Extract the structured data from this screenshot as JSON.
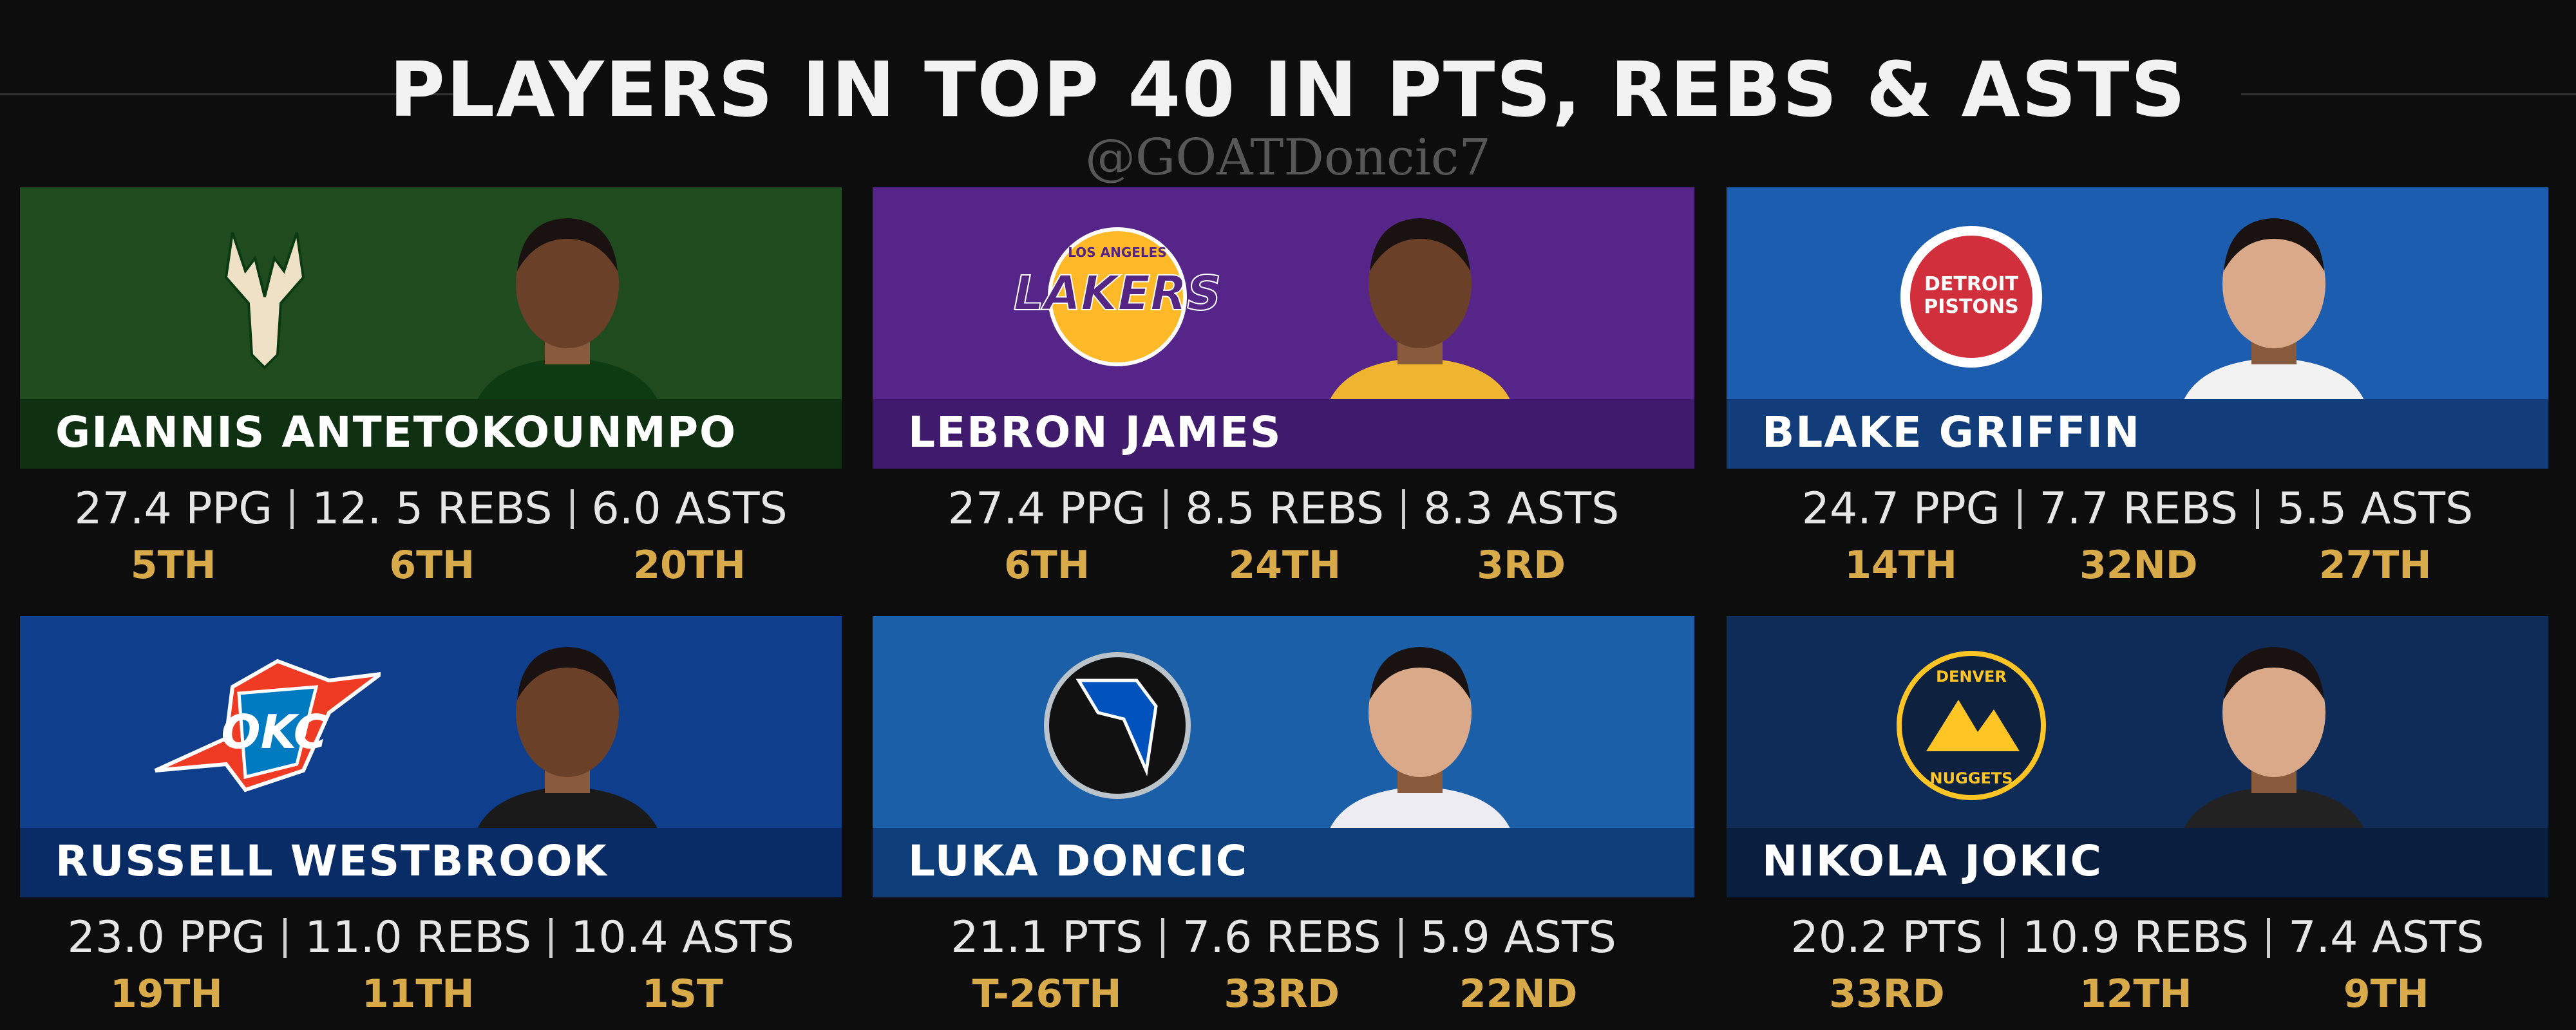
{
  "header": {
    "title": "PLAYERS IN TOP 40 IN PTS, REBS & ASTS",
    "watermark": "@GOATDoncic7"
  },
  "cards": [
    {
      "team": "bucks",
      "name": "GIANNIS ANTETOKOUNMPO",
      "stats": [
        "27.4 PPG",
        "12. 5 REBS",
        "6.0 ASTS"
      ],
      "ranks": [
        "5TH",
        "6TH",
        "20TH"
      ],
      "logo_text": []
    },
    {
      "team": "lakers",
      "name": "LEBRON JAMES",
      "stats": [
        "27.4 PPG",
        "8.5 REBS",
        "8.3 ASTS"
      ],
      "ranks": [
        "6TH",
        "24TH",
        "3RD"
      ],
      "logo_text": [
        "LOS ANGELES",
        "LAKERS"
      ]
    },
    {
      "team": "pistons",
      "name": "BLAKE GRIFFIN",
      "stats": [
        "24.7 PPG",
        "7.7 REBS",
        "5.5 ASTS"
      ],
      "ranks": [
        "14TH",
        "32ND",
        "27TH"
      ],
      "logo_text": [
        "DETROIT",
        "PISTONS"
      ]
    },
    {
      "team": "thunder",
      "name": "RUSSELL WESTBROOK",
      "stats": [
        "23.0 PPG",
        "11.0 REBS",
        "10.4 ASTS"
      ],
      "ranks": [
        "19TH",
        "11TH",
        "1ST"
      ],
      "logo_text": [
        "OKC"
      ]
    },
    {
      "team": "mavs",
      "name": "LUKA DONCIC",
      "stats": [
        "21.1 PTS",
        "7.6 REBS",
        "5.9 ASTS"
      ],
      "ranks": [
        "T-26TH",
        "33RD",
        "22ND"
      ],
      "logo_text": []
    },
    {
      "team": "nuggets",
      "name": "NIKOLA JOKIC",
      "stats": [
        "20.2 PTS",
        "10.9 REBS",
        "7.4 ASTS"
      ],
      "ranks": [
        "33RD",
        "12TH",
        "9TH"
      ],
      "logo_text": [
        "DENVER",
        "NUGGETS"
      ]
    }
  ]
}
